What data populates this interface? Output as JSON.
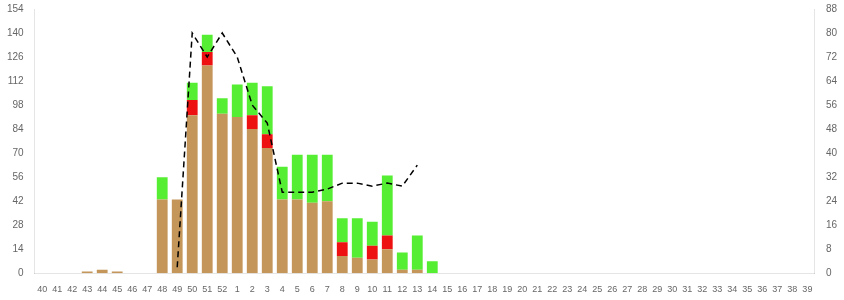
{
  "chart_data": {
    "type": "bar",
    "stacked": true,
    "grid": false,
    "categories": [
      "40",
      "41",
      "42",
      "43",
      "44",
      "45",
      "46",
      "47",
      "48",
      "49",
      "50",
      "51",
      "52",
      "1",
      "2",
      "3",
      "4",
      "5",
      "6",
      "7",
      "8",
      "9",
      "10",
      "11",
      "12",
      "13",
      "14",
      "15",
      "16",
      "17",
      "18",
      "19",
      "20",
      "21",
      "22",
      "23",
      "24",
      "25",
      "26",
      "27",
      "28",
      "29",
      "30",
      "31",
      "32",
      "33",
      "34",
      "35",
      "36",
      "37",
      "38",
      "39"
    ],
    "series": [
      {
        "color": "#C4965A",
        "values": [
          0,
          0,
          0,
          1,
          2,
          1,
          0,
          0,
          43,
          43,
          92,
          121,
          93,
          91,
          84,
          73,
          43,
          43,
          41,
          42,
          10,
          9,
          8,
          14,
          2,
          2,
          0,
          0,
          0,
          0,
          0,
          0,
          0,
          0,
          0,
          0,
          0,
          0,
          0,
          0,
          0,
          0,
          0,
          0,
          0,
          0,
          0,
          0,
          0,
          0,
          0,
          0
        ]
      },
      {
        "color": "#EE1111",
        "values": [
          0,
          0,
          0,
          0,
          0,
          0,
          0,
          0,
          0,
          0,
          9,
          8,
          0,
          0,
          8,
          8,
          0,
          0,
          0,
          0,
          8,
          0,
          8,
          8,
          0,
          0,
          0,
          0,
          0,
          0,
          0,
          0,
          0,
          0,
          0,
          0,
          0,
          0,
          0,
          0,
          0,
          0,
          0,
          0,
          0,
          0,
          0,
          0,
          0,
          0,
          0,
          0
        ]
      },
      {
        "color": "#55EE33",
        "values": [
          0,
          0,
          0,
          0,
          0,
          0,
          0,
          0,
          13,
          0,
          10,
          10,
          9,
          19,
          19,
          28,
          19,
          26,
          28,
          27,
          14,
          23,
          14,
          35,
          10,
          20,
          7,
          0,
          0,
          0,
          0,
          0,
          0,
          0,
          0,
          0,
          0,
          0,
          0,
          0,
          0,
          0,
          0,
          0,
          0,
          0,
          0,
          0,
          0,
          0,
          0,
          0
        ]
      },
      {
        "type": "line",
        "axis": "y2",
        "color": "#000000",
        "line_style": "dashed",
        "values": [
          null,
          null,
          null,
          null,
          null,
          null,
          null,
          null,
          null,
          2,
          80,
          72,
          80,
          72,
          56,
          50,
          27,
          27,
          27,
          28,
          30,
          30,
          29,
          30,
          29,
          36,
          null,
          null,
          null,
          null,
          null,
          null,
          null,
          null,
          null,
          null,
          null,
          null,
          null,
          null,
          null,
          null,
          null,
          null,
          null,
          null,
          null,
          null,
          null,
          null,
          null,
          null
        ]
      }
    ],
    "ylim": [
      0,
      154
    ],
    "yticks": [
      0,
      14,
      28,
      42,
      56,
      70,
      84,
      98,
      112,
      126,
      140,
      154
    ],
    "y2lim": [
      0,
      88
    ],
    "y2ticks": [
      0,
      8,
      16,
      24,
      32,
      40,
      48,
      56,
      64,
      72,
      80,
      88
    ]
  }
}
